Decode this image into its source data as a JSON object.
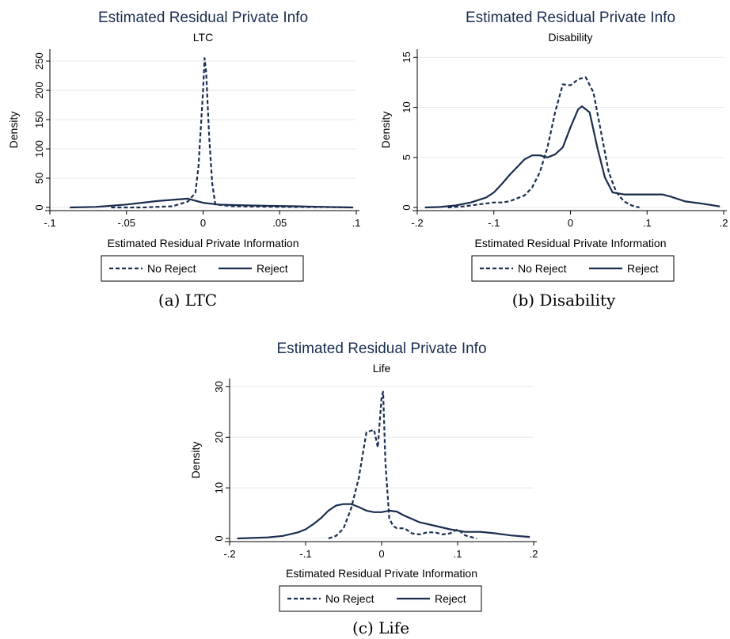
{
  "colors": {
    "line": "#1a2e4f",
    "title": "#1a2e4f",
    "grid": "#e8e8e8",
    "axis": "#000000"
  },
  "chart_data": [
    {
      "type": "line",
      "title": "Estimated Residual Private Info",
      "subtitle": "LTC",
      "caption": "(a) LTC",
      "xlabel": "Estimated Residual Private Information",
      "ylabel": "Density",
      "xlim": [
        -0.1,
        0.1
      ],
      "ylim": [
        0,
        265
      ],
      "xticks": [
        -0.1,
        -0.05,
        0,
        0.05,
        0.1
      ],
      "xtick_labels": [
        "-.1",
        "-.05",
        "0",
        ".05",
        ".1"
      ],
      "yticks": [
        0,
        50,
        100,
        150,
        200,
        250
      ],
      "ytick_labels": [
        "0",
        "50",
        "100",
        "150",
        "200",
        "250"
      ],
      "grid": true,
      "legend": "bottom",
      "series": [
        {
          "name": "No Reject",
          "style": "dashed",
          "x": [
            -0.06,
            -0.04,
            -0.02,
            -0.01,
            -0.005,
            -0.003,
            0.0,
            0.001,
            0.002,
            0.004,
            0.006,
            0.008,
            0.02,
            0.05,
            0.08,
            0.095
          ],
          "y": [
            0,
            0,
            2,
            10,
            25,
            70,
            200,
            255,
            230,
            120,
            40,
            5,
            2,
            1,
            0.5,
            0
          ]
        },
        {
          "name": "Reject",
          "style": "solid",
          "x": [
            -0.087,
            -0.07,
            -0.05,
            -0.04,
            -0.03,
            -0.02,
            -0.01,
            0.0,
            0.01,
            0.02,
            0.04,
            0.06,
            0.08,
            0.098
          ],
          "y": [
            0,
            1,
            5,
            8,
            11,
            13,
            15,
            8,
            5,
            4,
            3,
            2,
            1,
            0
          ]
        }
      ]
    },
    {
      "type": "line",
      "title": "Estimated Residual Private Info",
      "subtitle": "Disability",
      "caption": "(b) Disability",
      "xlabel": "Estimated Residual Private Information",
      "ylabel": "Density",
      "xlim": [
        -0.2,
        0.2
      ],
      "ylim": [
        0,
        15.5
      ],
      "xticks": [
        -0.2,
        -0.1,
        0,
        0.1,
        0.2
      ],
      "xtick_labels": [
        "-.2",
        "-.1",
        "0",
        ".1",
        ".2"
      ],
      "yticks": [
        0,
        5,
        10,
        15
      ],
      "ytick_labels": [
        "0",
        "5",
        "10",
        "15"
      ],
      "grid": true,
      "legend": "bottom",
      "series": [
        {
          "name": "No Reject",
          "style": "dashed",
          "x": [
            -0.16,
            -0.14,
            -0.12,
            -0.1,
            -0.09,
            -0.08,
            -0.06,
            -0.05,
            -0.04,
            -0.03,
            -0.02,
            -0.01,
            0.0,
            0.01,
            0.02,
            0.03,
            0.04,
            0.05,
            0.06,
            0.07,
            0.08,
            0.09
          ],
          "y": [
            0,
            0.1,
            0.3,
            0.5,
            0.5,
            0.6,
            1.2,
            2.0,
            3.5,
            6.0,
            9.5,
            12.3,
            12.2,
            12.8,
            13.0,
            11.5,
            7.5,
            3.5,
            1.5,
            0.6,
            0.2,
            0
          ]
        },
        {
          "name": "Reject",
          "style": "solid",
          "x": [
            -0.19,
            -0.17,
            -0.15,
            -0.13,
            -0.11,
            -0.1,
            -0.09,
            -0.08,
            -0.07,
            -0.06,
            -0.05,
            -0.04,
            -0.03,
            -0.02,
            -0.01,
            0.0,
            0.01,
            0.015,
            0.025,
            0.035,
            0.045,
            0.055,
            0.07,
            0.09,
            0.1,
            0.12,
            0.13,
            0.15,
            0.17,
            0.195
          ],
          "y": [
            0,
            0.05,
            0.2,
            0.5,
            1.0,
            1.5,
            2.3,
            3.2,
            4.0,
            4.8,
            5.2,
            5.2,
            5.0,
            5.3,
            6.0,
            8.0,
            9.8,
            10.1,
            9.5,
            6.0,
            3.0,
            1.5,
            1.3,
            1.3,
            1.3,
            1.3,
            1.1,
            0.6,
            0.4,
            0.1
          ]
        }
      ]
    },
    {
      "type": "line",
      "title": "Estimated Residual Private Info",
      "subtitle": "Life",
      "caption": "(c) Life",
      "xlabel": "Estimated Residual Private Information",
      "ylabel": "Density",
      "xlim": [
        -0.2,
        0.2
      ],
      "ylim": [
        0,
        31
      ],
      "xticks": [
        -0.2,
        -0.1,
        0,
        0.1,
        0.2
      ],
      "xtick_labels": [
        "-.2",
        "-.1",
        "0",
        ".1",
        ".2"
      ],
      "yticks": [
        0,
        10,
        20,
        30
      ],
      "ytick_labels": [
        "0",
        "10",
        "20",
        "30"
      ],
      "grid": true,
      "legend": "bottom",
      "series": [
        {
          "name": "No Reject",
          "style": "dashed",
          "x": [
            -0.07,
            -0.06,
            -0.05,
            -0.04,
            -0.03,
            -0.02,
            -0.01,
            -0.005,
            0.0,
            0.002,
            0.005,
            0.01,
            0.015,
            0.02,
            0.03,
            0.04,
            0.05,
            0.06,
            0.07,
            0.08,
            0.09,
            0.1,
            0.11,
            0.125
          ],
          "y": [
            0,
            0.5,
            2.0,
            6.0,
            12.0,
            21.0,
            21.5,
            18.0,
            28.0,
            29.0,
            15.0,
            4.0,
            2.5,
            2.0,
            2.0,
            1.0,
            0.8,
            1.2,
            1.2,
            0.8,
            1.0,
            1.8,
            0.6,
            0
          ]
        },
        {
          "name": "Reject",
          "style": "solid",
          "x": [
            -0.19,
            -0.17,
            -0.15,
            -0.13,
            -0.11,
            -0.1,
            -0.09,
            -0.08,
            -0.07,
            -0.06,
            -0.05,
            -0.04,
            -0.03,
            -0.02,
            -0.01,
            0.0,
            0.01,
            0.02,
            0.03,
            0.05,
            0.07,
            0.09,
            0.11,
            0.13,
            0.15,
            0.17,
            0.195
          ],
          "y": [
            0,
            0.1,
            0.2,
            0.5,
            1.2,
            1.8,
            2.8,
            4.0,
            5.5,
            6.5,
            6.8,
            6.8,
            6.2,
            5.5,
            5.2,
            5.2,
            5.5,
            5.3,
            4.5,
            3.2,
            2.5,
            1.8,
            1.3,
            1.3,
            1.0,
            0.6,
            0.3
          ]
        }
      ]
    }
  ]
}
